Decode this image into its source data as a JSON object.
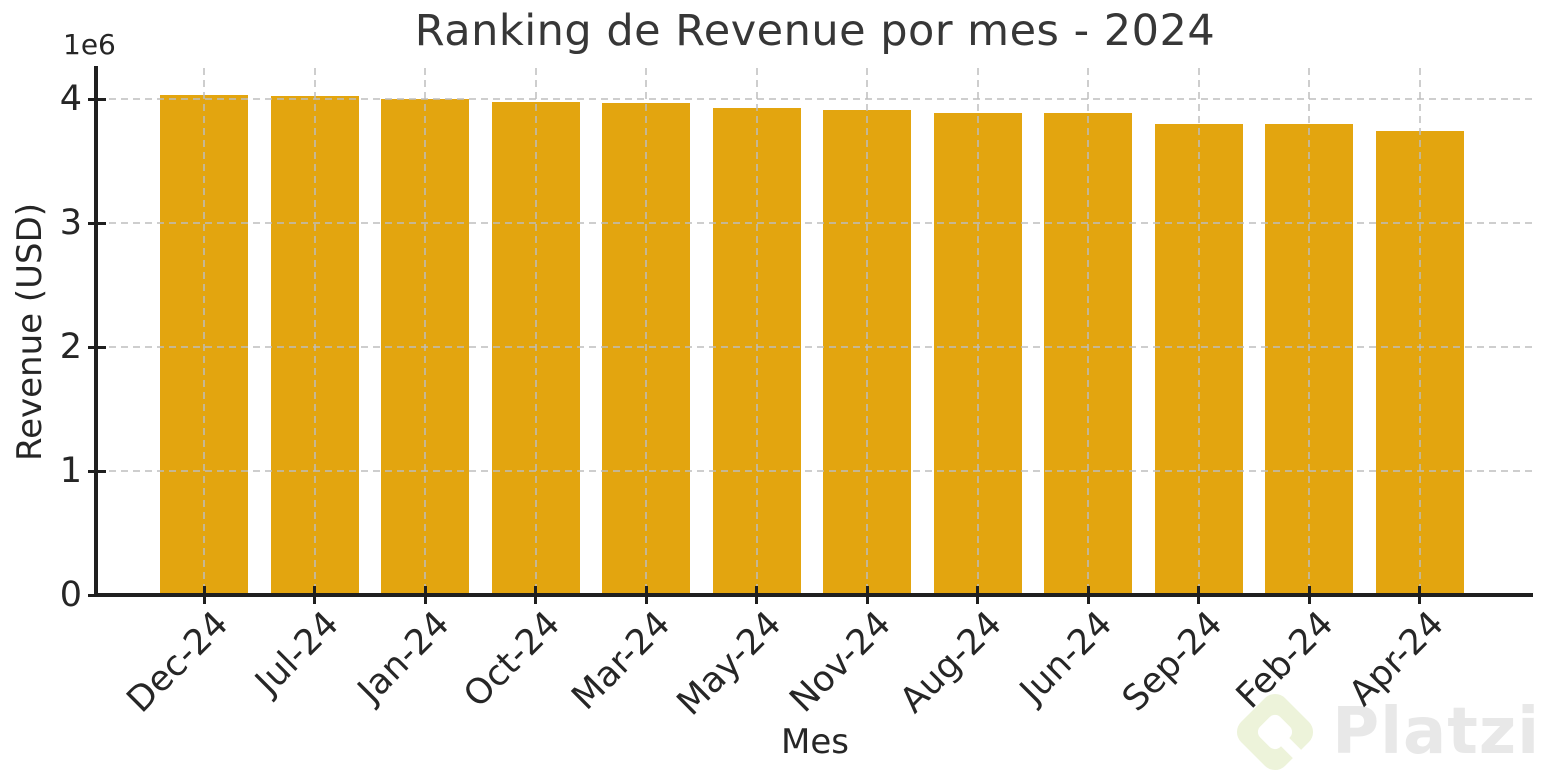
{
  "chart_data": {
    "type": "bar",
    "title": "Ranking de Revenue por mes - 2024",
    "xlabel": "Mes",
    "ylabel": "Revenue (USD)",
    "y_offset_label": "1e6",
    "categories": [
      "Dec-24",
      "Jul-24",
      "Jan-24",
      "Oct-24",
      "Mar-24",
      "May-24",
      "Nov-24",
      "Aug-24",
      "Jun-24",
      "Sep-24",
      "Feb-24",
      "Apr-24"
    ],
    "values": [
      4030000,
      4025000,
      4000000,
      3975000,
      3965000,
      3930000,
      3915000,
      3885000,
      3885000,
      3800000,
      3795000,
      3745000
    ],
    "ylim": [
      0,
      4250000
    ],
    "yticks": [
      0,
      1000000,
      2000000,
      3000000,
      4000000
    ],
    "ytick_labels": [
      "0",
      "1",
      "2",
      "3",
      "4"
    ],
    "grid": true,
    "grid_style": "dashed",
    "legend": "none",
    "sort_order": "descending",
    "bar_color": "#E3A50F"
  },
  "colors": {
    "grid": "#BDBDBD",
    "spine": "#1F1F1F",
    "title_text": "#373737",
    "tick_text": "#262626",
    "watermark_text": "#E8E8E8",
    "watermark_logo": "#EDF3DA"
  },
  "watermark": {
    "text": "Platzi"
  }
}
